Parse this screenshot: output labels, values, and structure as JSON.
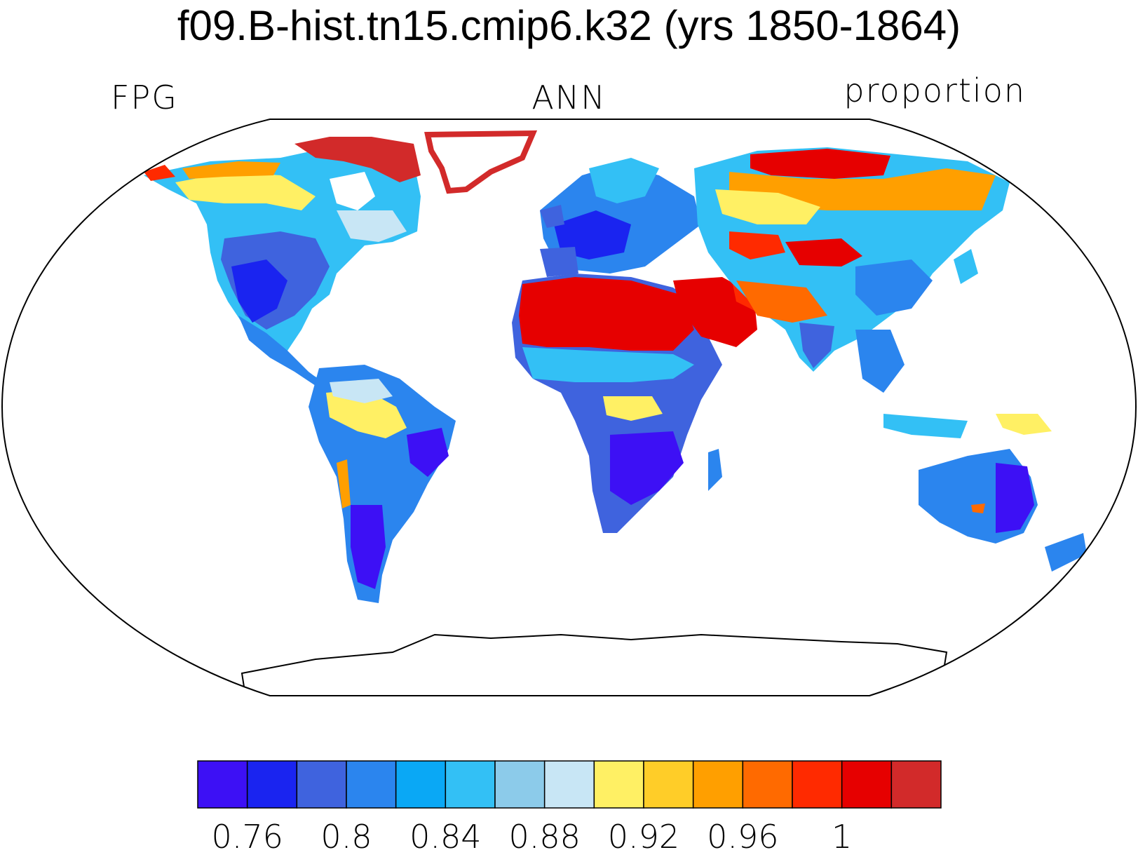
{
  "title": "f09.B-hist.tn15.cmip6.k32 (yrs 1850-1864)",
  "left_string": "FPG",
  "center_string": "ANN",
  "right_string": "proportion",
  "colorbar": {
    "colors": [
      "#3d10f5",
      "#1a24f0",
      "#3f63de",
      "#2b85ee",
      "#0aa8f5",
      "#33c0f5",
      "#8ccbea",
      "#c8e6f5",
      "#fff064",
      "#ffcd28",
      "#ff9f00",
      "#ff6a00",
      "#ff2a00",
      "#e60000",
      "#d22a2a"
    ],
    "tick_labels": [
      "0.76",
      "0.8",
      "0.84",
      "0.88",
      "0.92",
      "0.96",
      "1"
    ]
  },
  "map": {
    "projection": "Robinson",
    "variable": "FPG",
    "colors": {
      "deep_blue": "#3d10f5",
      "blue": "#1a24f0",
      "mid_blue": "#3f63de",
      "sky_blue": "#2b85ee",
      "light_blue": "#33c0f5",
      "pale_blue": "#c8e6f5",
      "yellow": "#fff064",
      "orange": "#ff9f00",
      "red": "#e60000",
      "dark_red": "#d22a2a"
    }
  }
}
